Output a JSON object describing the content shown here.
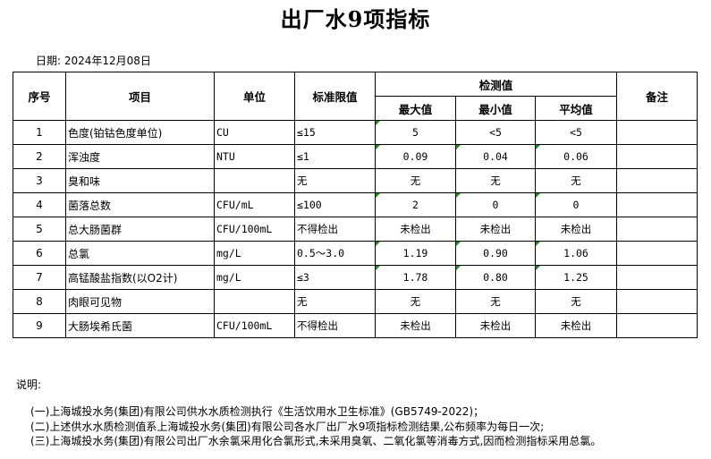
{
  "title": "出厂水9项指标",
  "date": "日期: 2024年12月08日",
  "headers": {
    "no": "序号",
    "item": "项目",
    "unit": "单位",
    "limit": "标准限值",
    "measured": "检测值",
    "max": "最大值",
    "min": "最小值",
    "avg": "平均值",
    "remark": "备注"
  },
  "flag_color": "#1a8a1a",
  "rows": [
    {
      "no": "1",
      "item": "色度(铂钴色度单位)",
      "unit": "CU",
      "limit": "≤15",
      "max": "5",
      "min": "<5",
      "avg": "<5",
      "remark": "",
      "flags": [
        true,
        false,
        false
      ]
    },
    {
      "no": "2",
      "item": "浑浊度",
      "unit": "NTU",
      "limit": "≤1",
      "max": "0.09",
      "min": "0.04",
      "avg": "0.06",
      "remark": "",
      "flags": [
        true,
        true,
        true
      ]
    },
    {
      "no": "3",
      "item": "臭和味",
      "unit": "",
      "limit": "无",
      "max": "无",
      "min": "无",
      "avg": "无",
      "remark": "",
      "flags": [
        false,
        false,
        false
      ]
    },
    {
      "no": "4",
      "item": "菌落总数",
      "unit": "CFU/mL",
      "limit": "≤100",
      "max": "2",
      "min": "0",
      "avg": "0",
      "remark": "",
      "flags": [
        true,
        true,
        true
      ]
    },
    {
      "no": "5",
      "item": "总大肠菌群",
      "unit": "CFU/100mL",
      "limit": "不得检出",
      "max": "未检出",
      "min": "未检出",
      "avg": "未检出",
      "remark": "",
      "flags": [
        false,
        false,
        false
      ]
    },
    {
      "no": "6",
      "item": "总氯",
      "unit": "mg/L",
      "limit": "0.5～3.0",
      "max": "1.19",
      "min": "0.90",
      "avg": "1.06",
      "remark": "",
      "flags": [
        true,
        true,
        true
      ]
    },
    {
      "no": "7",
      "item": "高锰酸盐指数(以O2计)",
      "unit": "mg/L",
      "limit": "≤3",
      "max": "1.78",
      "min": "0.80",
      "avg": "1.25",
      "remark": "",
      "flags": [
        true,
        true,
        true
      ]
    },
    {
      "no": "8",
      "item": "肉眼可见物",
      "unit": "",
      "limit": "无",
      "max": "无",
      "min": "无",
      "avg": "无",
      "remark": "",
      "flags": [
        false,
        false,
        false
      ]
    },
    {
      "no": "9",
      "item": "大肠埃希氏菌",
      "unit": "CFU/100mL",
      "limit": "不得检出",
      "max": "未检出",
      "min": "未检出",
      "avg": "未检出",
      "remark": "",
      "flags": [
        false,
        false,
        false
      ]
    }
  ],
  "notes": {
    "label": "说明:",
    "lines": [
      "(一)上海城投水务(集团)有限公司供水水质检测执行《生活饮用水卫生标准》(GB5749-2022)；",
      "(二)上述供水水质检测值系上海城投水务(集团)有限公司各水厂出厂水9项指标检测结果,公布频率为每日一次;",
      "(三)上海城投水务(集团)有限公司出厂水余氯采用化合氯形式,未采用臭氧、二氧化氯等消毒方式,因而检测指标采用总氯。"
    ]
  }
}
